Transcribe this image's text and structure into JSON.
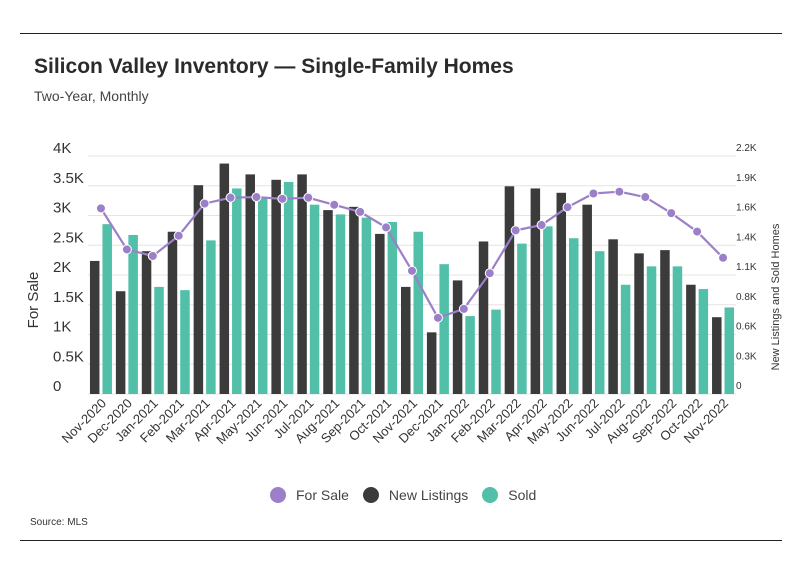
{
  "title": "Silicon Valley Inventory — Single-Family Homes",
  "subtitle": "Two-Year, Monthly",
  "source": "Source:  MLS",
  "colors": {
    "for_sale": "#9b7fc8",
    "new_listings": "#3b3b3b",
    "sold": "#52bfa8",
    "grid": "#e4e4e4"
  },
  "chart_data": {
    "type": "bar",
    "categories": [
      "Nov-2020",
      "Dec-2020",
      "Jan-2021",
      "Feb-2021",
      "Mar-2021",
      "Apr-2021",
      "May-2021",
      "Jun-2021",
      "Jul-2021",
      "Aug-2021",
      "Sep-2021",
      "Oct-2021",
      "Nov-2021",
      "Dec-2021",
      "Jan-2022",
      "Feb-2022",
      "Mar-2022",
      "Apr-2022",
      "May-2022",
      "Jun-2022",
      "Jul-2022",
      "Aug-2022",
      "Sep-2022",
      "Oct-2022",
      "Nov-2022"
    ],
    "ylabel": "For Sale",
    "y2label": "New Listings and Sold Homes",
    "ylim": [
      0,
      4000
    ],
    "y2lim": [
      0,
      2200
    ],
    "yticks": [
      "0",
      "0.5K",
      "1K",
      "1.5K",
      "2K",
      "2.5K",
      "3K",
      "3.5K",
      "4K"
    ],
    "y2ticks": [
      "0",
      "0.3K",
      "0.6K",
      "0.8K",
      "1.1K",
      "1.4K",
      "1.6K",
      "1.9K",
      "2.2K"
    ],
    "grid": true,
    "legend_position": "bottom",
    "series": [
      {
        "name": "For Sale",
        "type": "line",
        "axis": "left",
        "values": [
          3120,
          2430,
          2320,
          2660,
          3200,
          3300,
          3310,
          3280,
          3300,
          3180,
          3060,
          2800,
          2070,
          1280,
          1430,
          2030,
          2750,
          2840,
          3140,
          3370,
          3400,
          3310,
          3040,
          2730,
          2290
        ]
      },
      {
        "name": "New Listings",
        "type": "bar",
        "axis": "right",
        "values": [
          1230,
          950,
          1320,
          1500,
          1930,
          2130,
          2030,
          1980,
          2030,
          1700,
          1730,
          1480,
          990,
          570,
          1050,
          1410,
          1920,
          1900,
          1860,
          1750,
          1430,
          1300,
          1330,
          1010,
          710
        ]
      },
      {
        "name": "Sold",
        "type": "bar",
        "axis": "right",
        "values": [
          1570,
          1470,
          990,
          960,
          1420,
          1900,
          1820,
          1960,
          1750,
          1660,
          1630,
          1590,
          1500,
          1200,
          720,
          780,
          1390,
          1550,
          1440,
          1320,
          1010,
          1180,
          1180,
          970,
          800
        ]
      }
    ]
  }
}
